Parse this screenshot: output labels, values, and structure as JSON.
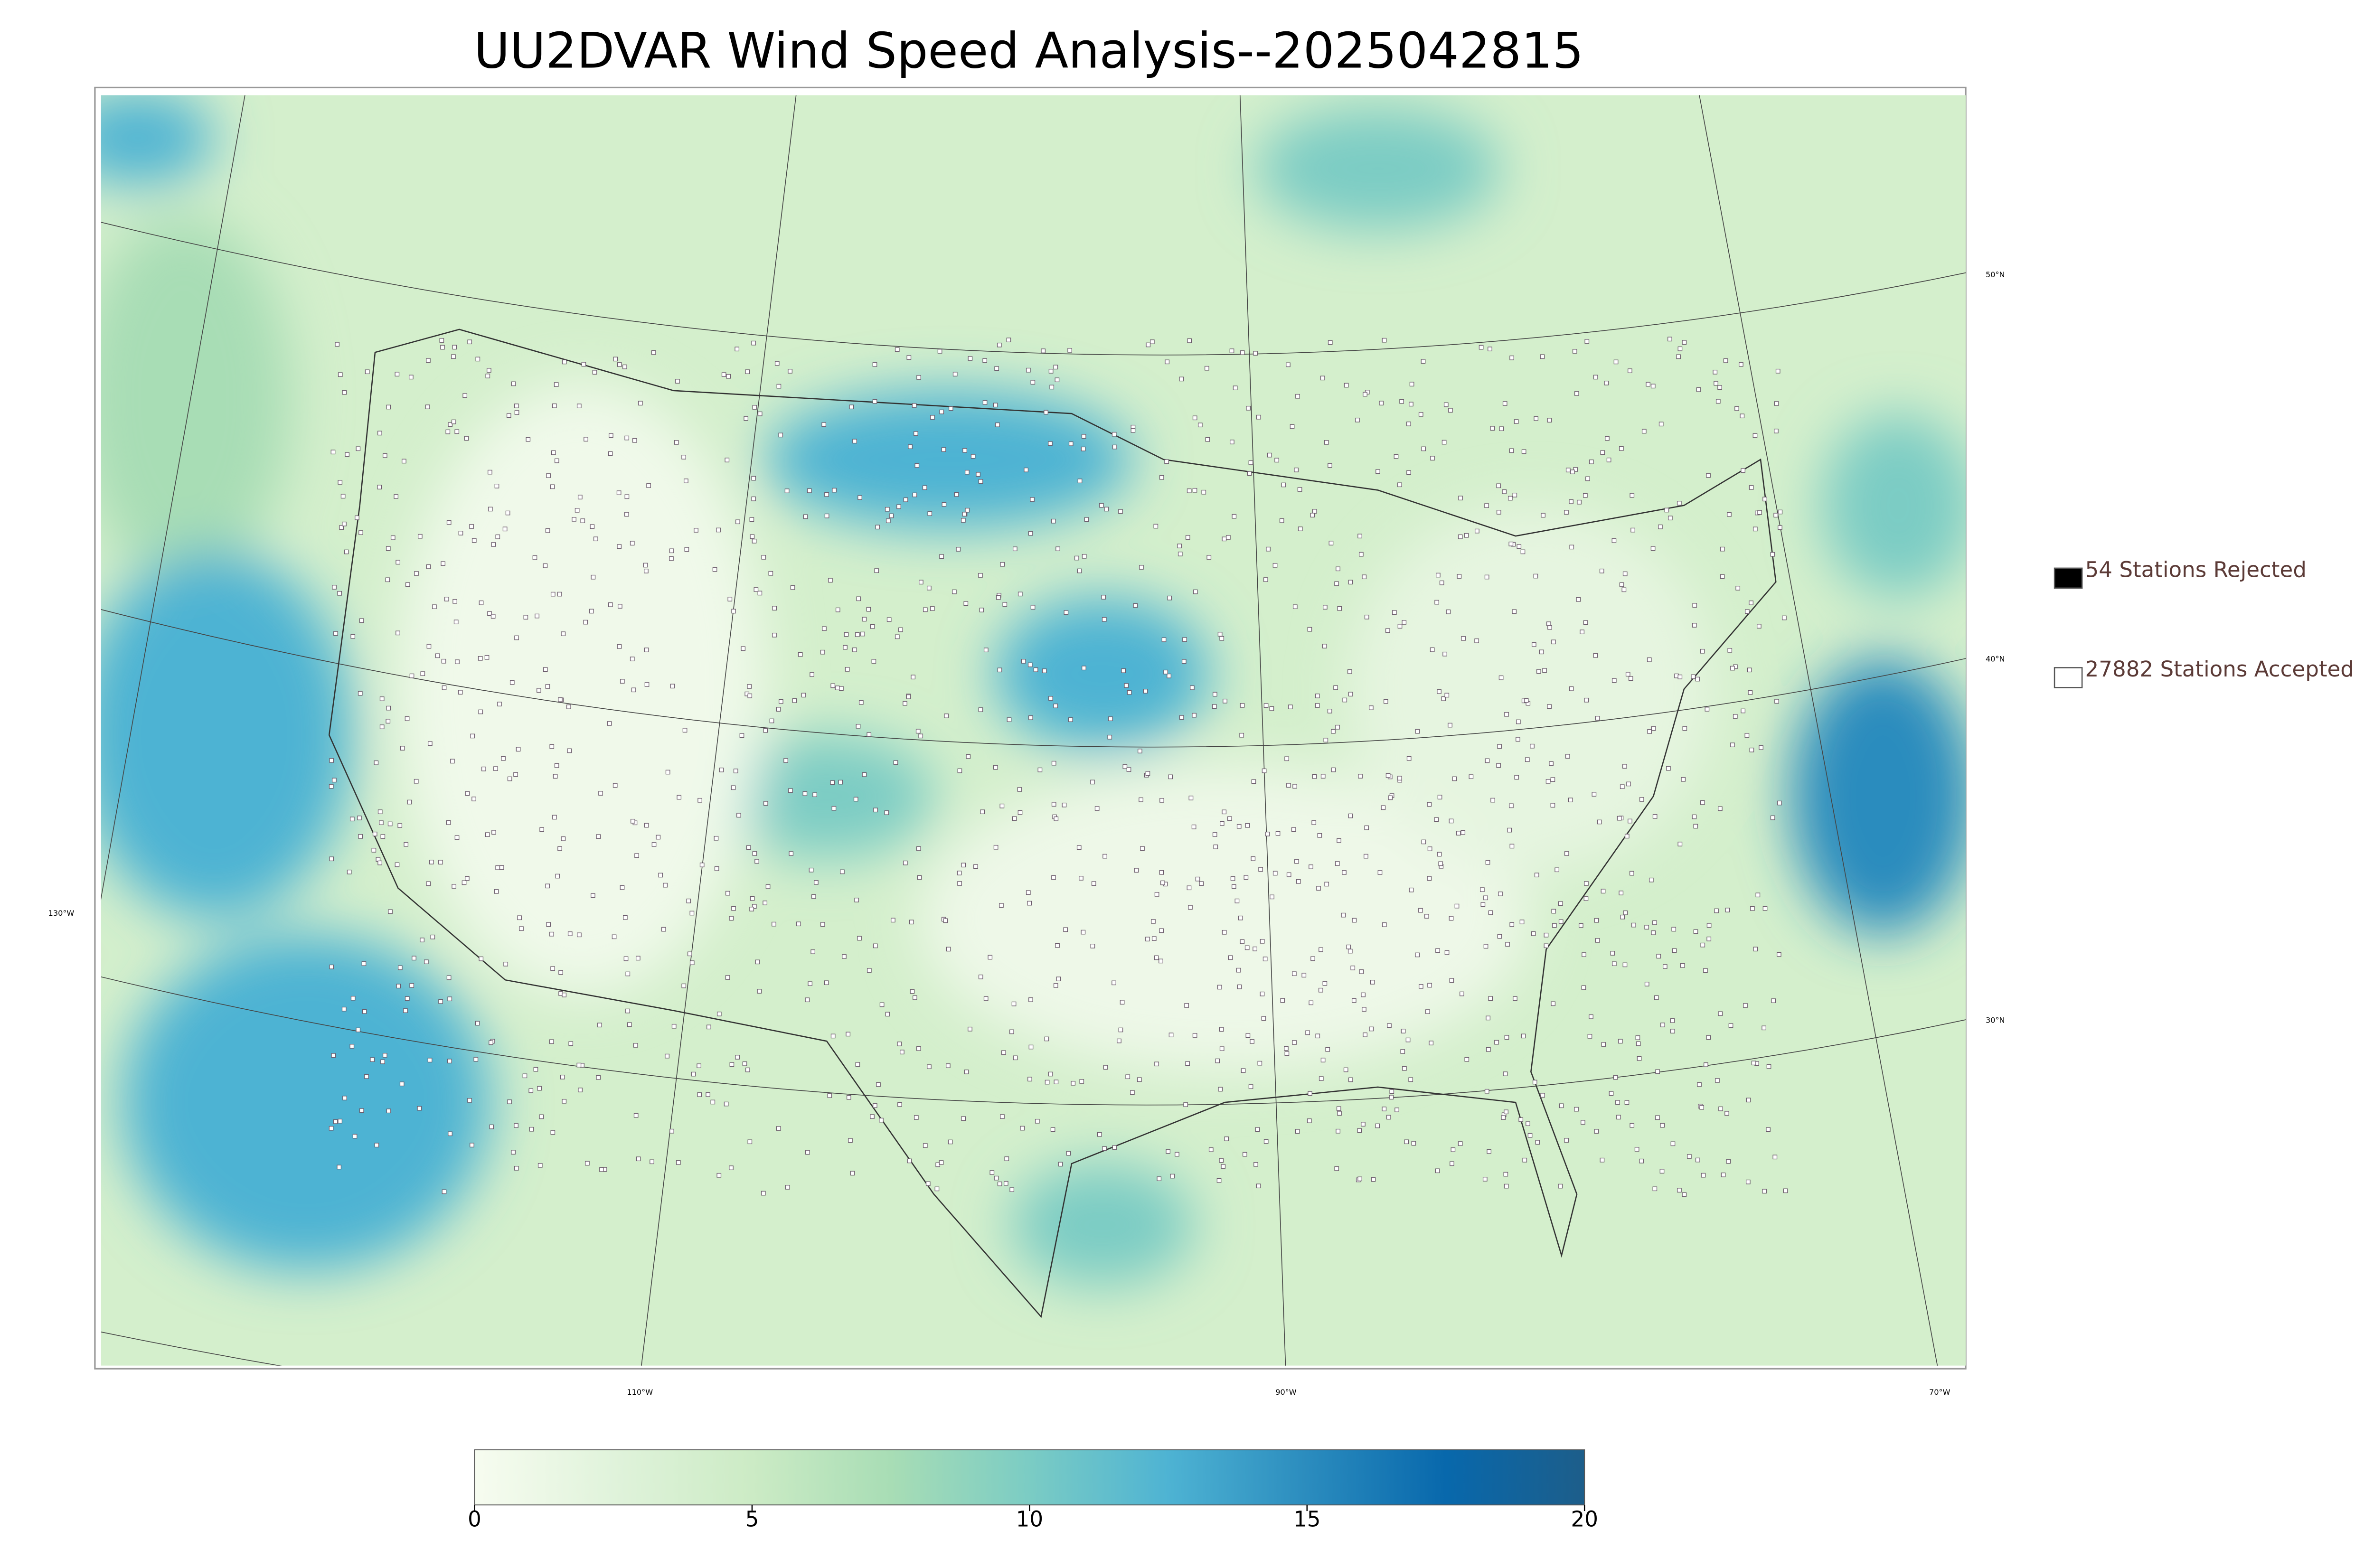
{
  "title": "UU2DVAR Wind Speed Analysis--2025042815",
  "colorbar": {
    "lim": [
      0,
      20
    ],
    "ticks": [
      0,
      5,
      10,
      15,
      20
    ],
    "colors": [
      "#f7fcf0",
      "#e0f3db",
      "#ccebc5",
      "#a8ddb5",
      "#7bccc4",
      "#4eb3d3",
      "#2b8cbe",
      "#0868ac",
      "#1d5e8a"
    ]
  },
  "legend": [
    {
      "label": "54 Stations Rejected",
      "color": "#000000"
    },
    {
      "label": "27882 Stations Accepted",
      "color": "#ffffff"
    }
  ],
  "graticule": {
    "lon_labels": [
      "130°W",
      "110°W",
      "90°W",
      "70°W"
    ],
    "lat_labels": [
      "50°N",
      "40°N",
      "30°N"
    ]
  }
}
